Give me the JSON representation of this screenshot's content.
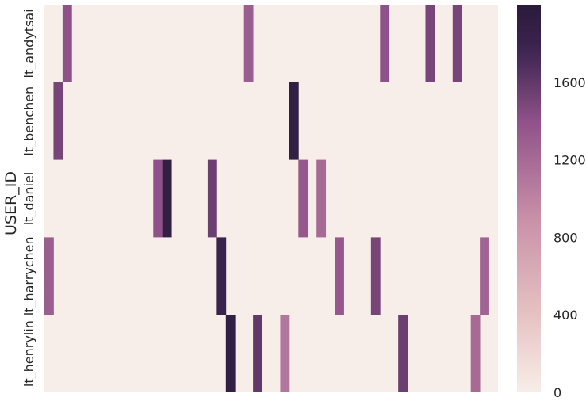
{
  "chart_data": {
    "type": "heatmap",
    "ylabel": "USER_ID",
    "xlabel": "",
    "rows": [
      "lt_andytsai",
      "lt_benchen",
      "lt_daniel",
      "lt_harrychen",
      "lt_henrylin"
    ],
    "n_columns": 50,
    "cells": [
      {
        "row": 0,
        "col": 2,
        "value": 1400
      },
      {
        "row": 0,
        "col": 22,
        "value": 1300
      },
      {
        "row": 0,
        "col": 37,
        "value": 1400
      },
      {
        "row": 0,
        "col": 42,
        "value": 1500
      },
      {
        "row": 0,
        "col": 45,
        "value": 1500
      },
      {
        "row": 1,
        "col": 1,
        "value": 1500
      },
      {
        "row": 1,
        "col": 27,
        "value": 1900
      },
      {
        "row": 2,
        "col": 12,
        "value": 1400
      },
      {
        "row": 2,
        "col": 13,
        "value": 1900
      },
      {
        "row": 2,
        "col": 18,
        "value": 1550
      },
      {
        "row": 2,
        "col": 28,
        "value": 1350
      },
      {
        "row": 2,
        "col": 30,
        "value": 1200
      },
      {
        "row": 3,
        "col": 0,
        "value": 1300
      },
      {
        "row": 3,
        "col": 19,
        "value": 1800
      },
      {
        "row": 3,
        "col": 32,
        "value": 1350
      },
      {
        "row": 3,
        "col": 36,
        "value": 1500
      },
      {
        "row": 3,
        "col": 48,
        "value": 1250
      },
      {
        "row": 4,
        "col": 20,
        "value": 1900
      },
      {
        "row": 4,
        "col": 23,
        "value": 1600
      },
      {
        "row": 4,
        "col": 26,
        "value": 1100
      },
      {
        "row": 4,
        "col": 39,
        "value": 1550
      },
      {
        "row": 4,
        "col": 47,
        "value": 1200
      }
    ],
    "colorbar": {
      "min": 0,
      "max": 2000,
      "ticks": [
        "0",
        "400",
        "800",
        "1200",
        "1600"
      ],
      "tick_values": [
        0,
        400,
        800,
        1200,
        1600
      ]
    },
    "colors": {
      "low": "#f7eee9",
      "mid_low": "#e6c2c2",
      "mid": "#c890a8",
      "mid_high": "#8f5189",
      "high": "#3c2550",
      "max": "#2b1a3b"
    }
  }
}
